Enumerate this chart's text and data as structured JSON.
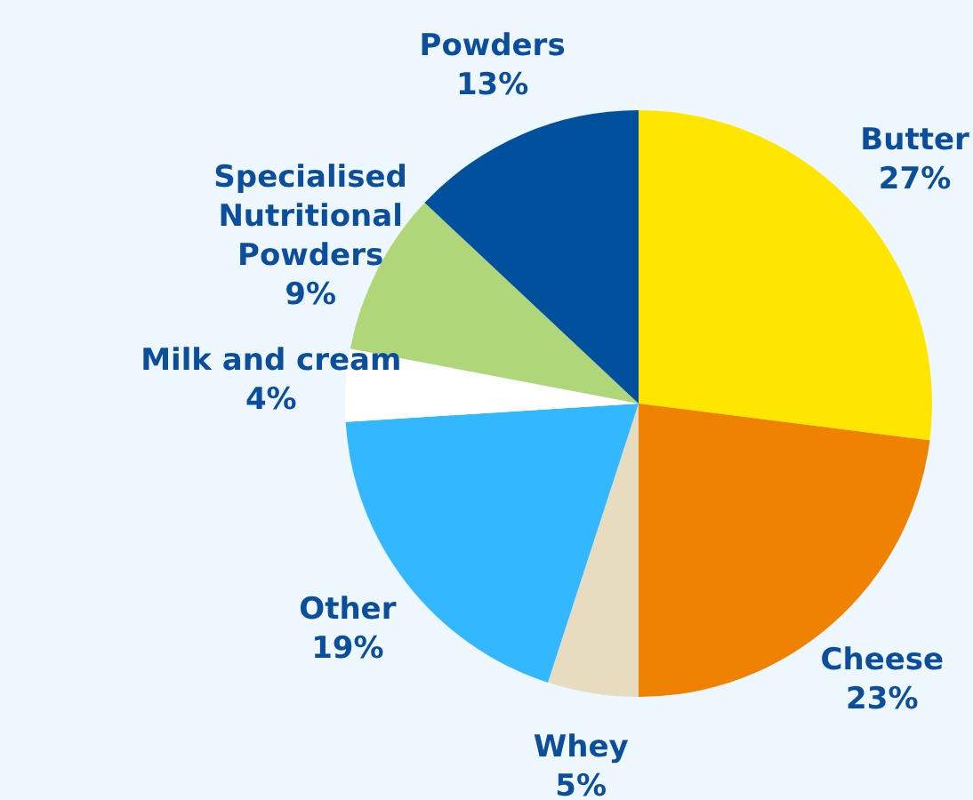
{
  "chart_data": {
    "type": "pie",
    "categories": [
      "Butter",
      "Cheese",
      "Whey",
      "Other",
      "Milk and cream",
      "Specialised Nutritional Powders",
      "Powders"
    ],
    "values": [
      27,
      23,
      5,
      19,
      4,
      9,
      13
    ],
    "value_labels": [
      "27%",
      "23%",
      "5%",
      "19%",
      "4%",
      "9%",
      "13%"
    ],
    "colors": [
      "#ffe600",
      "#ef8200",
      "#e8dcc0",
      "#33b8ff",
      "#ffffff",
      "#b0d67a",
      "#00509e"
    ],
    "legend": false
  }
}
